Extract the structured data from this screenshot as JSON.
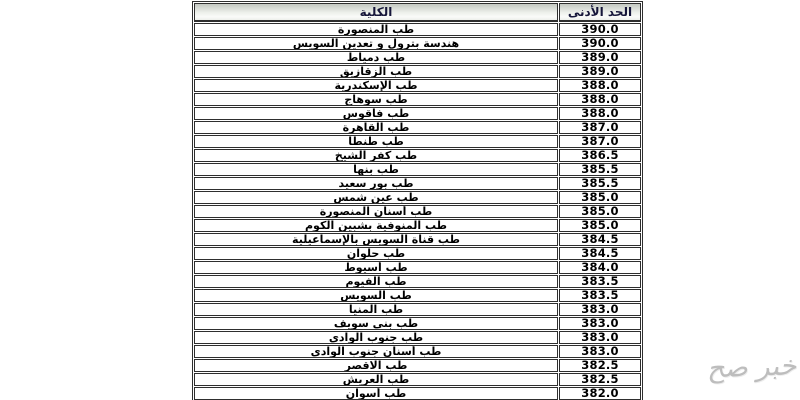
{
  "watermark": {
    "text": "خبر صح"
  },
  "colors": {
    "border": "#2e2e2e",
    "header_text": "#16163a",
    "header_gradient_top": "#c3c7c0",
    "header_gradient_bottom": "#edefeb",
    "watermark_gray": "#bdbdbd",
    "page_background": "#ffffff"
  },
  "table": {
    "headers": {
      "college": "الكلية",
      "min": "الحد الأدنى"
    },
    "rows": [
      {
        "college": "طب المنصورة",
        "min": "390.0"
      },
      {
        "college": "هندسة بترول و تعدين السويس",
        "min": "390.0"
      },
      {
        "college": "طب دمياط",
        "min": "389.0"
      },
      {
        "college": "طب الزقازيق",
        "min": "389.0"
      },
      {
        "college": "طب الإسكندرية",
        "min": "388.0"
      },
      {
        "college": "طب سوهاج",
        "min": "388.0"
      },
      {
        "college": "طب فاقوس",
        "min": "388.0"
      },
      {
        "college": "طب القاهرة",
        "min": "387.0"
      },
      {
        "college": "طب طنطا",
        "min": "387.0"
      },
      {
        "college": "طب كفر الشيخ",
        "min": "386.5"
      },
      {
        "college": "طب بنها",
        "min": "385.5"
      },
      {
        "college": "طب بور سعيد",
        "min": "385.5"
      },
      {
        "college": "طب عين شمس",
        "min": "385.0"
      },
      {
        "college": "طب أسنان المنصورة",
        "min": "385.0"
      },
      {
        "college": "طب المنوفية بشبين الكوم",
        "min": "385.0"
      },
      {
        "college": "طب قناة السويس بالإسماعيلية",
        "min": "384.5"
      },
      {
        "college": "طب حلوان",
        "min": "384.5"
      },
      {
        "college": "طب أسيوط",
        "min": "384.0"
      },
      {
        "college": "طب الفيوم",
        "min": "383.5"
      },
      {
        "college": "طب السويس",
        "min": "383.5"
      },
      {
        "college": "طب المنيا",
        "min": "383.0"
      },
      {
        "college": "طب بني سويف",
        "min": "383.0"
      },
      {
        "college": "طب جنوب الوادي",
        "min": "383.0"
      },
      {
        "college": "طب أسنان جنوب الوادي",
        "min": "383.0"
      },
      {
        "college": "طب الاقصر",
        "min": "382.5"
      },
      {
        "college": "طب العريش",
        "min": "382.5"
      },
      {
        "college": "طب أسوان",
        "min": "382.0"
      }
    ]
  }
}
